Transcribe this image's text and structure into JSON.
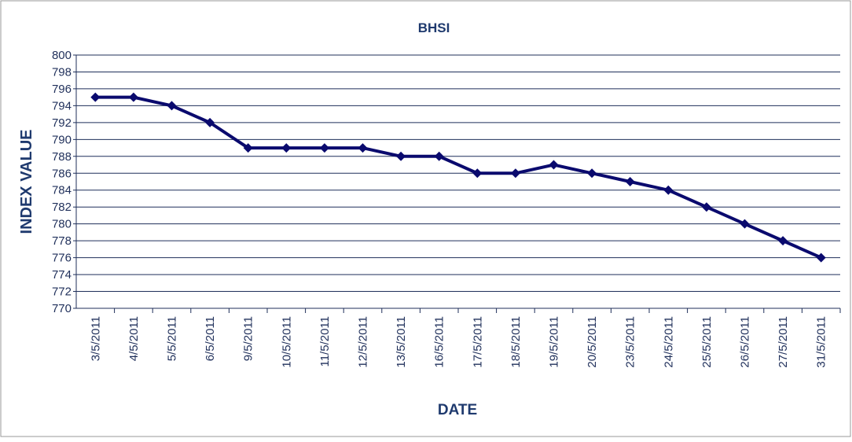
{
  "chart_data": {
    "type": "line",
    "title": "BHSI",
    "x_label": "DATE",
    "y_label": "INDEX VALUE",
    "categories": [
      "3/5/2011",
      "4/5/2011",
      "5/5/2011",
      "6/5/2011",
      "9/5/2011",
      "10/5/2011",
      "11/5/2011",
      "12/5/2011",
      "13/5/2011",
      "16/5/2011",
      "17/5/2011",
      "18/5/2011",
      "19/5/2011",
      "20/5/2011",
      "23/5/2011",
      "24/5/2011",
      "25/5/2011",
      "26/5/2011",
      "27/5/2011",
      "31/5/2011"
    ],
    "values": [
      795,
      795,
      794,
      792,
      789,
      789,
      789,
      789,
      788,
      788,
      786,
      786,
      787,
      786,
      785,
      784,
      782,
      780,
      778,
      776
    ],
    "color": "#0a0a6e",
    "ylim": [
      770,
      800
    ],
    "yticks": [
      770,
      772,
      774,
      776,
      778,
      780,
      782,
      784,
      786,
      788,
      790,
      792,
      794,
      796,
      798,
      800
    ],
    "grid": true
  }
}
